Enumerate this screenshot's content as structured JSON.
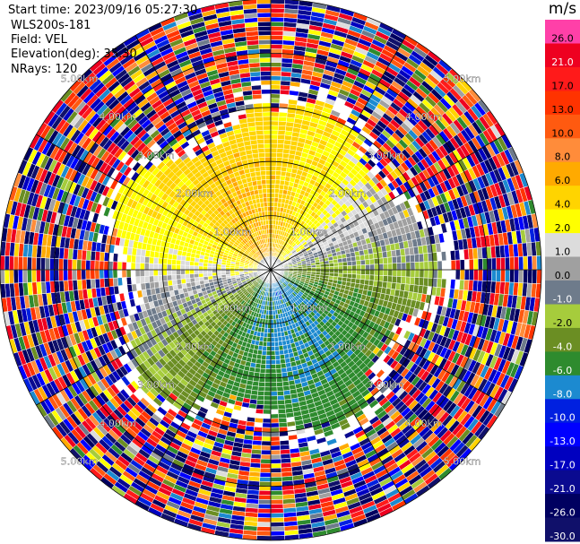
{
  "header": {
    "start_time": "Start time: 2023/09/16 05:27:30",
    "instrument": "WLS200s-181",
    "field": "Field: VEL",
    "elevation": "Elevation(deg): 35.30",
    "nrays": "NRays: 120"
  },
  "colorbar": {
    "unit": "m/s",
    "bins": [
      {
        "label": "26.0",
        "color": "#ff40a8",
        "text": "#000000"
      },
      {
        "label": "21.0",
        "color": "#ee0020",
        "text": "#ffffff"
      },
      {
        "label": "17.0",
        "color": "#ff1a1a",
        "text": "#000000"
      },
      {
        "label": "13.0",
        "color": "#ff3300",
        "text": "#000000"
      },
      {
        "label": "10.0",
        "color": "#ff5a10",
        "text": "#000000"
      },
      {
        "label": "8.0",
        "color": "#ff8c3a",
        "text": "#000000"
      },
      {
        "label": "6.0",
        "color": "#ffaa00",
        "text": "#000000"
      },
      {
        "label": "4.0",
        "color": "#ffd400",
        "text": "#000000"
      },
      {
        "label": "2.0",
        "color": "#ffff00",
        "text": "#000000"
      },
      {
        "label": "1.0",
        "color": "#dcdcdc",
        "text": "#000000"
      },
      {
        "label": "0.0",
        "color": "#a0a0a0",
        "text": "#000000"
      },
      {
        "label": "-1.0",
        "color": "#6e7b8b",
        "text": "#ffffff"
      },
      {
        "label": "-2.0",
        "color": "#a6cc3c",
        "text": "#000000"
      },
      {
        "label": "-4.0",
        "color": "#6b8e23",
        "text": "#ffffff"
      },
      {
        "label": "-6.0",
        "color": "#2e8b2e",
        "text": "#ffffff"
      },
      {
        "label": "-8.0",
        "color": "#1c8ad0",
        "text": "#ffffff"
      },
      {
        "label": "-10.0",
        "color": "#0020e0",
        "text": "#ffffff"
      },
      {
        "label": "-13.0",
        "color": "#0000ff",
        "text": "#ffffff"
      },
      {
        "label": "-17.0",
        "color": "#0000c0",
        "text": "#ffffff"
      },
      {
        "label": "-21.0",
        "color": "#0a0a90",
        "text": "#ffffff"
      },
      {
        "label": "-26.0",
        "color": "#000060",
        "text": "#ffffff"
      },
      {
        "label": "-30.0",
        "color": "#10106a",
        "text": "#ffffff"
      }
    ]
  },
  "chart_data": {
    "type": "heatmap",
    "subtype": "radar PPI",
    "field": "VEL",
    "unit": "m/s",
    "nrays": 120,
    "max_range_km": 5.0,
    "range_rings_km": [
      1.0,
      2.0,
      3.0,
      4.0,
      5.0
    ],
    "ring_labels": [
      "1.00km",
      "2.00km",
      "3.00km",
      "4.00km",
      "5.00km"
    ],
    "azimuth_lines_deg": [
      0,
      30,
      60,
      90,
      120,
      150,
      180,
      210,
      240,
      270,
      300,
      330
    ],
    "regions": [
      {
        "name": "north positive velocities",
        "az_deg": [
          285,
          60
        ],
        "range_km": [
          0.0,
          3.0
        ],
        "velocity_ms": [
          2.0,
          8.0
        ]
      },
      {
        "name": "southern negative velocities",
        "az_deg": [
          100,
          240
        ],
        "range_km": [
          0.0,
          3.0
        ],
        "velocity_ms": [
          -8.0,
          -1.0
        ]
      },
      {
        "name": "noise beyond data",
        "range_km": [
          3.0,
          5.0
        ],
        "velocity_ms": [
          -30.0,
          26.0
        ]
      }
    ]
  }
}
